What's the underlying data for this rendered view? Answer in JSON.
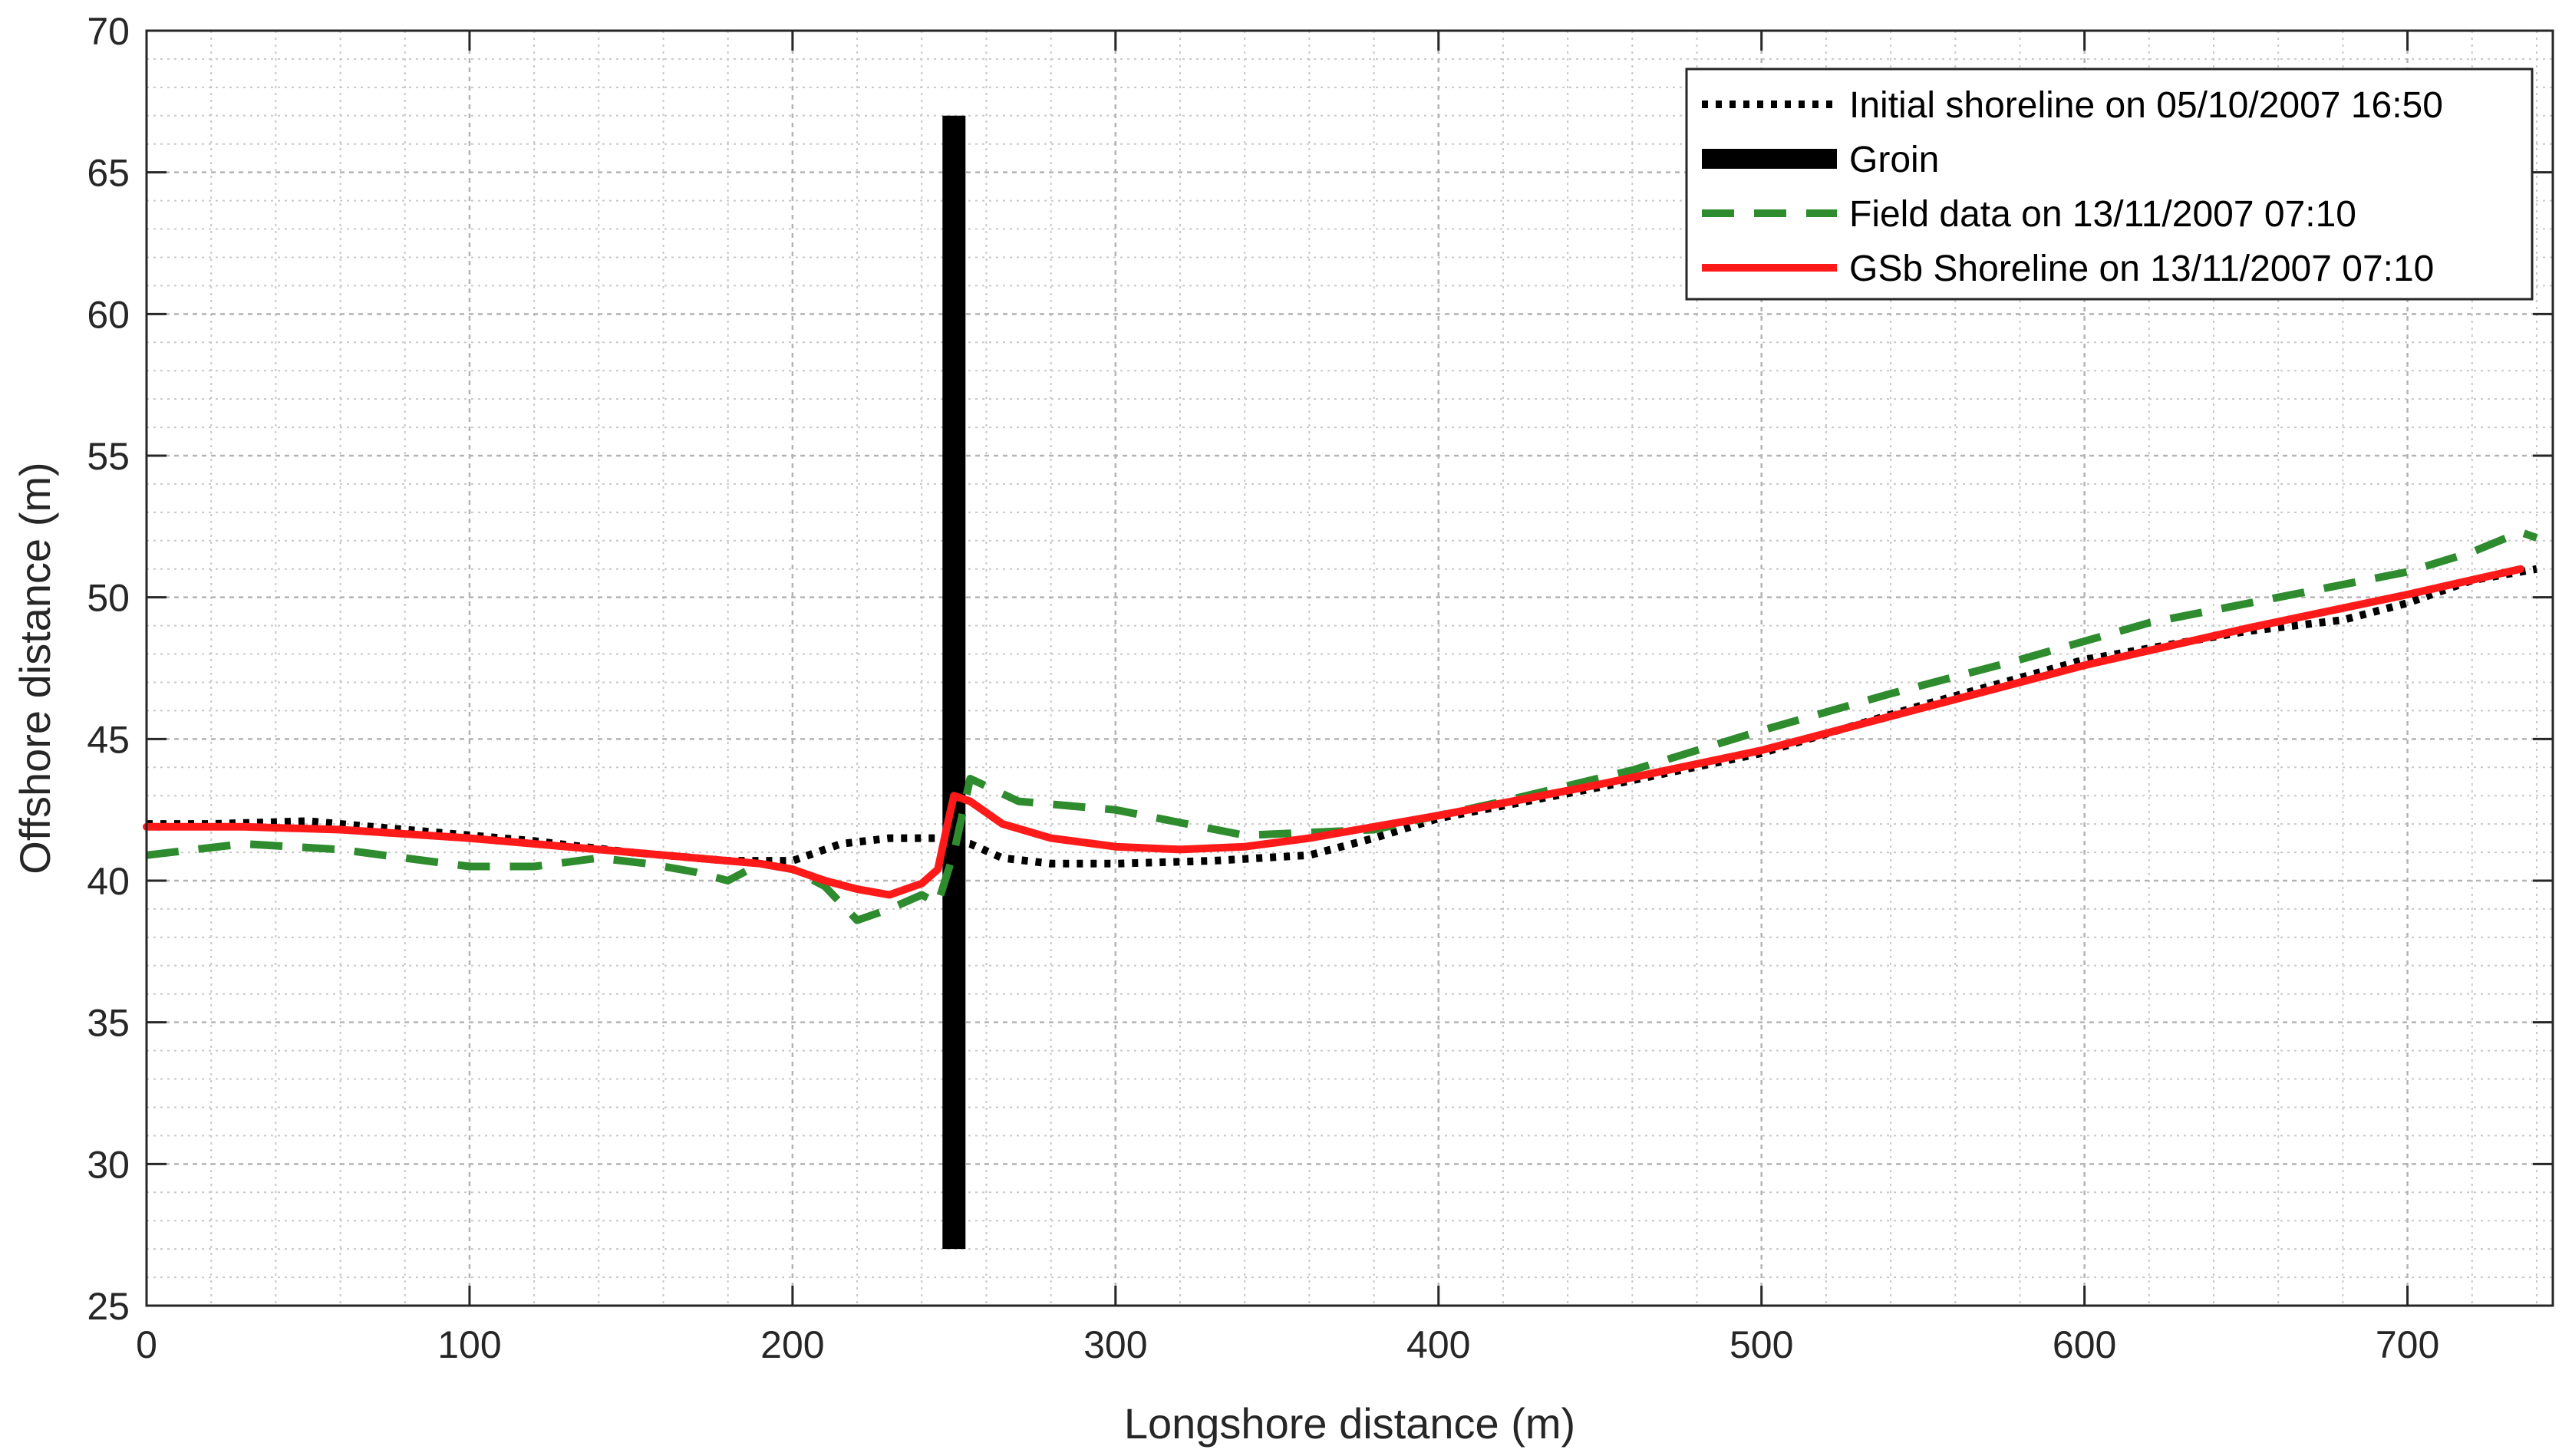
{
  "chart_data": {
    "type": "line",
    "title": "",
    "xlabel": "Longshore distance (m)",
    "ylabel": "Offshore distance (m)",
    "xlim": [
      0,
      745
    ],
    "ylim": [
      25,
      70
    ],
    "xticks": [
      0,
      100,
      200,
      300,
      400,
      500,
      600,
      700
    ],
    "yticks": [
      25,
      30,
      35,
      40,
      45,
      50,
      55,
      60,
      65,
      70
    ],
    "xtick_labels": [
      "0",
      "100",
      "200",
      "300",
      "400",
      "500",
      "600",
      "700"
    ],
    "ytick_labels": [
      "25",
      "30",
      "35",
      "40",
      "45",
      "50",
      "55",
      "60",
      "65",
      "70"
    ],
    "grid": true,
    "minor_grid": true,
    "legend_position": "top-right",
    "series": [
      {
        "name": "Initial shoreline on 05/10/2007 16:50",
        "style": "dotted",
        "color": "#000000",
        "x": [
          0,
          20,
          50,
          80,
          120,
          150,
          180,
          200,
          215,
          230,
          245,
          255,
          265,
          280,
          300,
          330,
          360,
          380,
          400,
          450,
          500,
          550,
          600,
          650,
          680,
          700,
          720,
          740
        ],
        "y": [
          42.0,
          42.0,
          42.1,
          41.8,
          41.4,
          41.0,
          40.7,
          40.7,
          41.3,
          41.5,
          41.5,
          41.3,
          40.8,
          40.6,
          40.6,
          40.7,
          40.9,
          41.5,
          42.2,
          43.3,
          44.5,
          46.2,
          47.8,
          48.8,
          49.2,
          49.8,
          50.6,
          51.0
        ]
      },
      {
        "name": "Groin",
        "style": "bar",
        "color": "#000000",
        "x": [
          250,
          250
        ],
        "y": [
          27,
          67
        ]
      },
      {
        "name": "Field data on 13/11/2007 07:10",
        "style": "dashed",
        "color": "#2e8b2e",
        "x": [
          0,
          15,
          30,
          45,
          60,
          80,
          100,
          120,
          140,
          155,
          170,
          180,
          190,
          200,
          210,
          220,
          230,
          240,
          245,
          250,
          255,
          270,
          300,
          340,
          380,
          420,
          460,
          500,
          540,
          580,
          620,
          660,
          700,
          720,
          735,
          740
        ],
        "y": [
          40.9,
          41.1,
          41.3,
          41.2,
          41.1,
          40.8,
          40.5,
          40.5,
          40.8,
          40.6,
          40.3,
          40.0,
          40.6,
          40.4,
          39.8,
          38.6,
          39.0,
          39.5,
          39.2,
          41.0,
          43.6,
          42.8,
          42.5,
          41.6,
          41.8,
          42.8,
          43.9,
          45.3,
          46.6,
          47.8,
          49.1,
          50.0,
          50.9,
          51.6,
          52.3,
          52.1
        ]
      },
      {
        "name": "GSb Shoreline on 13/11/2007 07:10",
        "style": "solid",
        "color": "#ff1a1a",
        "x": [
          0,
          30,
          60,
          100,
          140,
          170,
          190,
          200,
          210,
          220,
          230,
          240,
          245,
          248,
          250,
          255,
          265,
          280,
          300,
          320,
          340,
          360,
          380,
          400,
          450,
          500,
          550,
          600,
          650,
          700,
          735
        ],
        "y": [
          41.9,
          41.9,
          41.8,
          41.5,
          41.1,
          40.8,
          40.6,
          40.4,
          40.0,
          39.7,
          39.5,
          39.9,
          40.4,
          42.0,
          43.0,
          42.8,
          42.0,
          41.5,
          41.2,
          41.1,
          41.2,
          41.5,
          41.9,
          42.3,
          43.4,
          44.6,
          46.1,
          47.6,
          48.9,
          50.1,
          51.0
        ]
      }
    ]
  }
}
